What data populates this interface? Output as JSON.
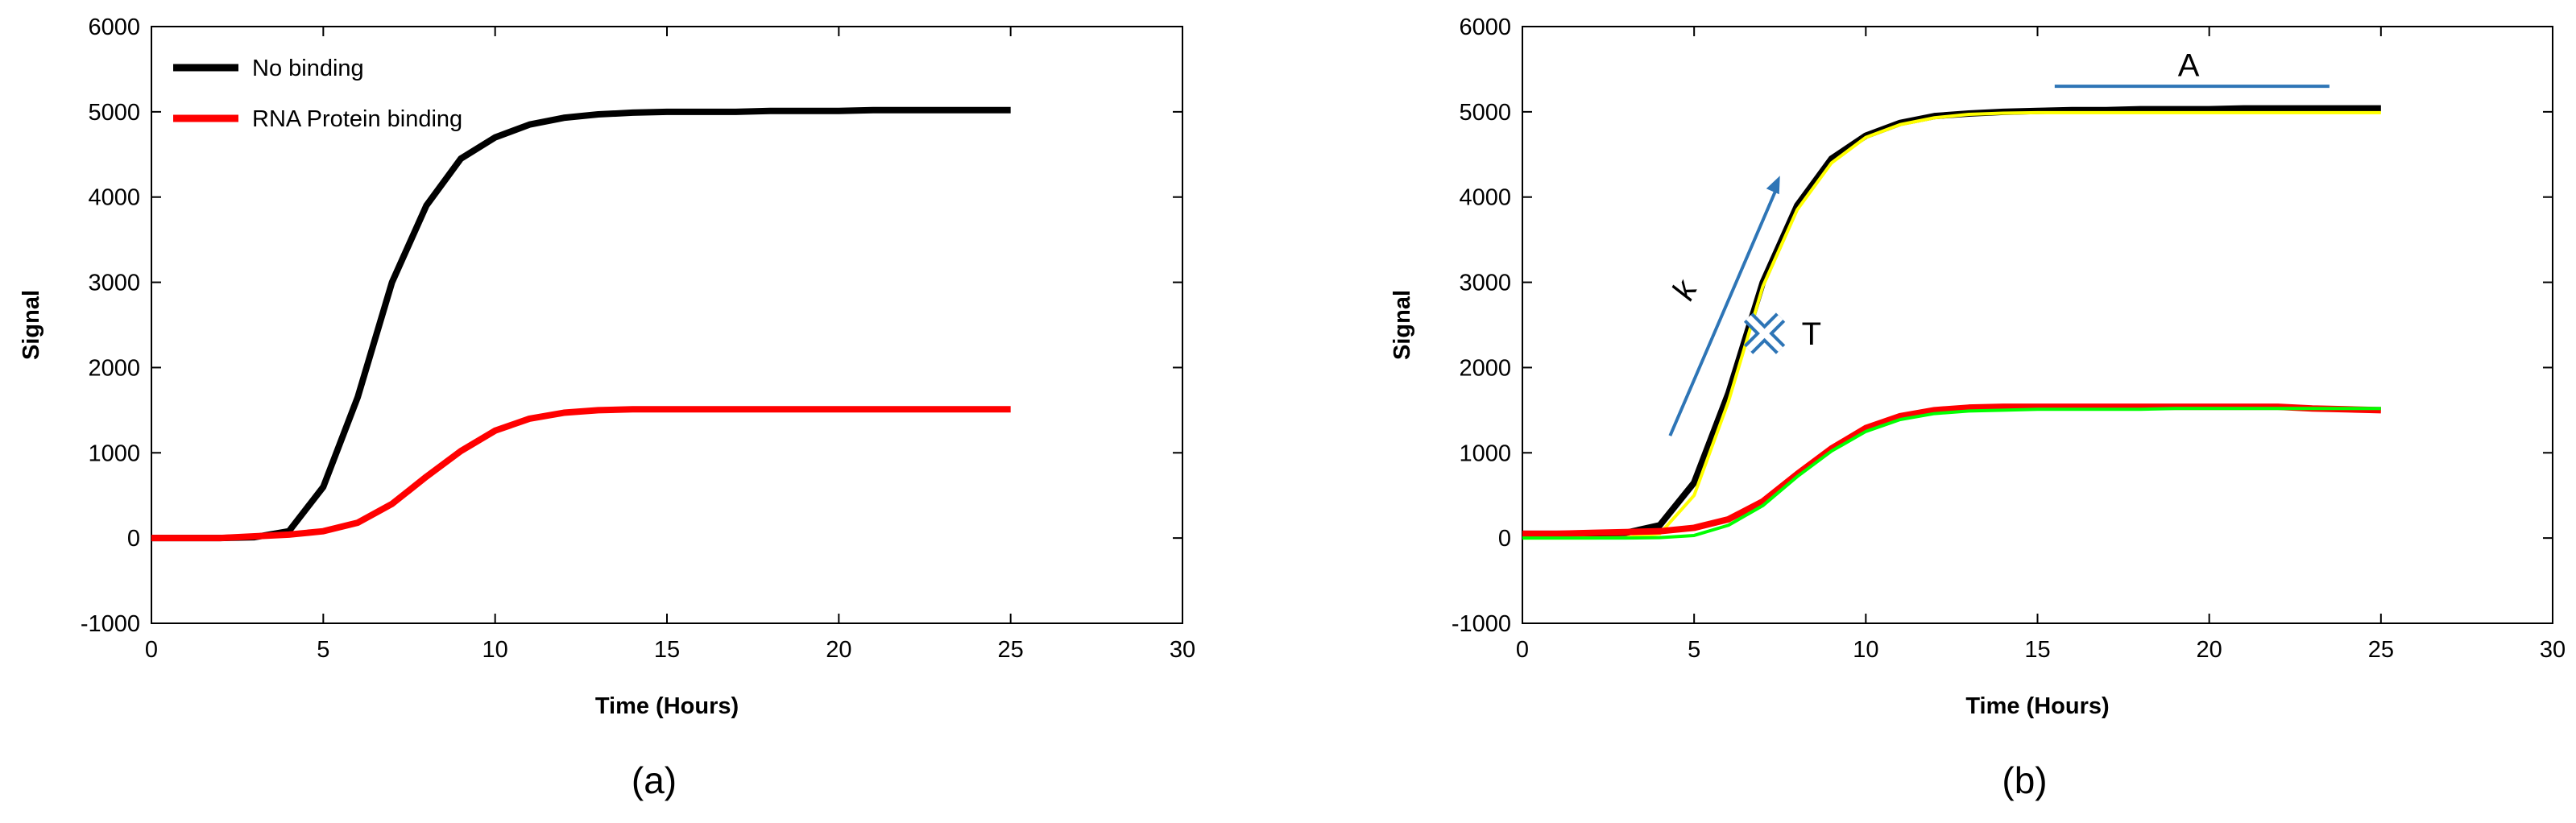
{
  "chart_data": [
    {
      "type": "line",
      "caption": "(a)",
      "x_label": "Time (Hours)",
      "y_label": "Signal",
      "x": [
        0,
        1,
        2,
        3,
        4,
        5,
        6,
        7,
        8,
        9,
        10,
        11,
        12,
        13,
        14,
        15,
        16,
        17,
        18,
        19,
        20,
        21,
        22,
        23,
        24,
        25
      ],
      "series": [
        {
          "name": "No binding",
          "color": "#000000",
          "values": [
            0,
            0,
            0,
            10,
            80,
            600,
            1650,
            3000,
            3900,
            4450,
            4700,
            4850,
            4930,
            4970,
            4990,
            5000,
            5000,
            5000,
            5010,
            5010,
            5010,
            5020,
            5020,
            5020,
            5020,
            5020
          ]
        },
        {
          "name": "RNA Protein binding",
          "color": "#ff0000",
          "values": [
            0,
            0,
            0,
            20,
            40,
            80,
            180,
            400,
            720,
            1020,
            1260,
            1400,
            1470,
            1500,
            1510,
            1510,
            1510,
            1510,
            1510,
            1510,
            1510,
            1510,
            1510,
            1510,
            1510,
            1510
          ]
        }
      ],
      "xlim": [
        0,
        30
      ],
      "xticks": [
        0,
        5,
        10,
        15,
        20,
        25,
        30
      ],
      "ylim": [
        -1000,
        6000
      ],
      "yticks": [
        -1000,
        0,
        1000,
        2000,
        3000,
        4000,
        5000,
        6000
      ],
      "legend": "upper left"
    },
    {
      "type": "line",
      "caption": "(b)",
      "x_label": "Time (Hours)",
      "y_label": "Signal",
      "x": [
        0,
        1,
        2,
        3,
        4,
        5,
        6,
        7,
        8,
        9,
        10,
        11,
        12,
        13,
        14,
        15,
        16,
        17,
        18,
        19,
        20,
        21,
        22,
        23,
        24,
        25
      ],
      "series": [
        {
          "color": "#000000",
          "values": [
            50,
            50,
            50,
            60,
            150,
            650,
            1700,
            3000,
            3900,
            4450,
            4720,
            4870,
            4950,
            4980,
            5000,
            5010,
            5020,
            5020,
            5030,
            5030,
            5030,
            5040,
            5040,
            5040,
            5040,
            5040
          ]
        },
        {
          "color": "#ffff00",
          "values": [
            0,
            0,
            0,
            5,
            50,
            500,
            1600,
            2950,
            3850,
            4400,
            4700,
            4850,
            4930,
            4970,
            4985,
            4990,
            4990,
            4990,
            4990,
            4990,
            4990,
            4990,
            4990,
            4990,
            4990,
            4990
          ]
        },
        {
          "color": "#ff0000",
          "values": [
            50,
            50,
            60,
            70,
            80,
            120,
            220,
            430,
            750,
            1050,
            1290,
            1430,
            1500,
            1530,
            1540,
            1540,
            1540,
            1540,
            1540,
            1540,
            1540,
            1540,
            1540,
            1520,
            1510,
            1500
          ]
        },
        {
          "color": "#00ff00",
          "values": [
            0,
            0,
            0,
            0,
            5,
            30,
            150,
            380,
            720,
            1020,
            1250,
            1390,
            1460,
            1490,
            1500,
            1510,
            1510,
            1510,
            1510,
            1520,
            1520,
            1520,
            1520,
            1520,
            1520,
            1520
          ]
        }
      ],
      "xlim": [
        0,
        30
      ],
      "xticks": [
        0,
        5,
        10,
        15,
        20,
        25,
        30
      ],
      "ylim": [
        -1000,
        6000
      ],
      "yticks": [
        -1000,
        0,
        1000,
        2000,
        3000,
        4000,
        5000,
        6000
      ],
      "annotations": [
        "A",
        "k",
        "T"
      ]
    }
  ]
}
